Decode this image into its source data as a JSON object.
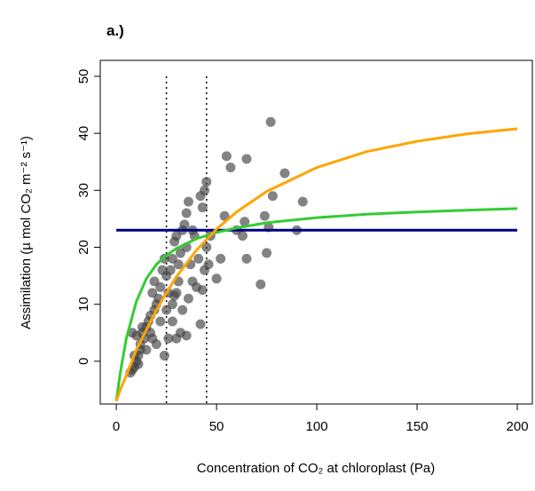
{
  "chart_data": {
    "type": "scatter",
    "title": "a.)",
    "x_label": "Concentration of CO₂ at chloroplast (Pa)",
    "y_label": "Assimilation (µ mol CO₂ m⁻² s⁻¹)",
    "xlim": [
      -8,
      207.5
    ],
    "ylim": [
      -7.5,
      52.8
    ],
    "xticks": [
      0,
      50,
      100,
      150,
      200
    ],
    "yticks": [
      0,
      10,
      20,
      30,
      40,
      50
    ],
    "vlines": [
      25,
      45
    ],
    "series": [
      {
        "mode": "markers",
        "color": "#404040",
        "x": [
          7,
          8,
          9,
          10,
          11,
          12,
          9,
          8,
          10,
          12,
          13,
          11,
          14,
          15,
          16,
          17,
          18,
          19,
          20,
          15,
          13,
          17,
          18,
          19,
          20,
          21,
          22,
          22,
          23,
          24,
          25,
          25,
          26,
          27,
          28,
          28,
          29,
          30,
          30,
          31,
          32,
          32,
          33,
          33,
          34,
          35,
          35,
          36,
          37,
          38,
          39,
          40,
          41,
          42,
          43,
          44,
          45,
          45,
          44,
          43,
          42,
          46,
          47,
          50,
          52,
          54,
          55,
          57,
          60,
          63,
          64,
          65,
          65,
          72,
          74,
          75,
          76,
          77,
          78,
          84,
          90,
          93,
          30,
          28,
          35,
          26,
          24,
          29,
          38,
          31,
          36
        ],
        "values": [
          -2,
          -1.5,
          -1,
          0,
          1,
          2,
          1,
          5,
          4.5,
          3,
          5,
          -0.5,
          4,
          6,
          7,
          8,
          4,
          9,
          10,
          2,
          6,
          5,
          12,
          14,
          3,
          11,
          7,
          13,
          16,
          18,
          15,
          9,
          12,
          16,
          10,
          18,
          21,
          22,
          12,
          14,
          19,
          5,
          23,
          9,
          24,
          20,
          26,
          28,
          17,
          14,
          22,
          13,
          18,
          29,
          27,
          30,
          31.5,
          20,
          16,
          12.5,
          6.5,
          17,
          22,
          14.5,
          18,
          25.5,
          36,
          34,
          23,
          22,
          24.5,
          35.5,
          18,
          13.5,
          25.5,
          19,
          23.5,
          42,
          29,
          33,
          23,
          28,
          4,
          7,
          4.5,
          4,
          1,
          11.5,
          23,
          17,
          11
        ]
      },
      {
        "mode": "lines",
        "color": "#000080",
        "x": [
          0,
          200
        ],
        "values": [
          23,
          23
        ]
      },
      {
        "mode": "lines",
        "color": "#33cc33",
        "x": [
          0,
          2,
          5,
          10,
          15,
          20,
          25,
          30,
          40,
          50,
          60,
          75,
          100,
          125,
          150,
          175,
          200
        ],
        "values": [
          -7,
          -2,
          4,
          10.5,
          14.5,
          17,
          18.6,
          19.8,
          21.5,
          22.6,
          23.4,
          24.3,
          25.2,
          25.8,
          26.2,
          26.5,
          26.8
        ]
      },
      {
        "mode": "lines",
        "color": "#ffa500",
        "x": [
          0,
          2,
          5,
          10,
          15,
          20,
          25,
          30,
          40,
          50,
          60,
          75,
          100,
          125,
          150,
          175,
          200
        ],
        "values": [
          -7,
          -5,
          -2.5,
          2,
          5.5,
          9,
          12,
          14.8,
          19.5,
          23.2,
          26.2,
          29.8,
          34,
          36.8,
          38.6,
          39.9,
          40.8
        ]
      }
    ]
  }
}
